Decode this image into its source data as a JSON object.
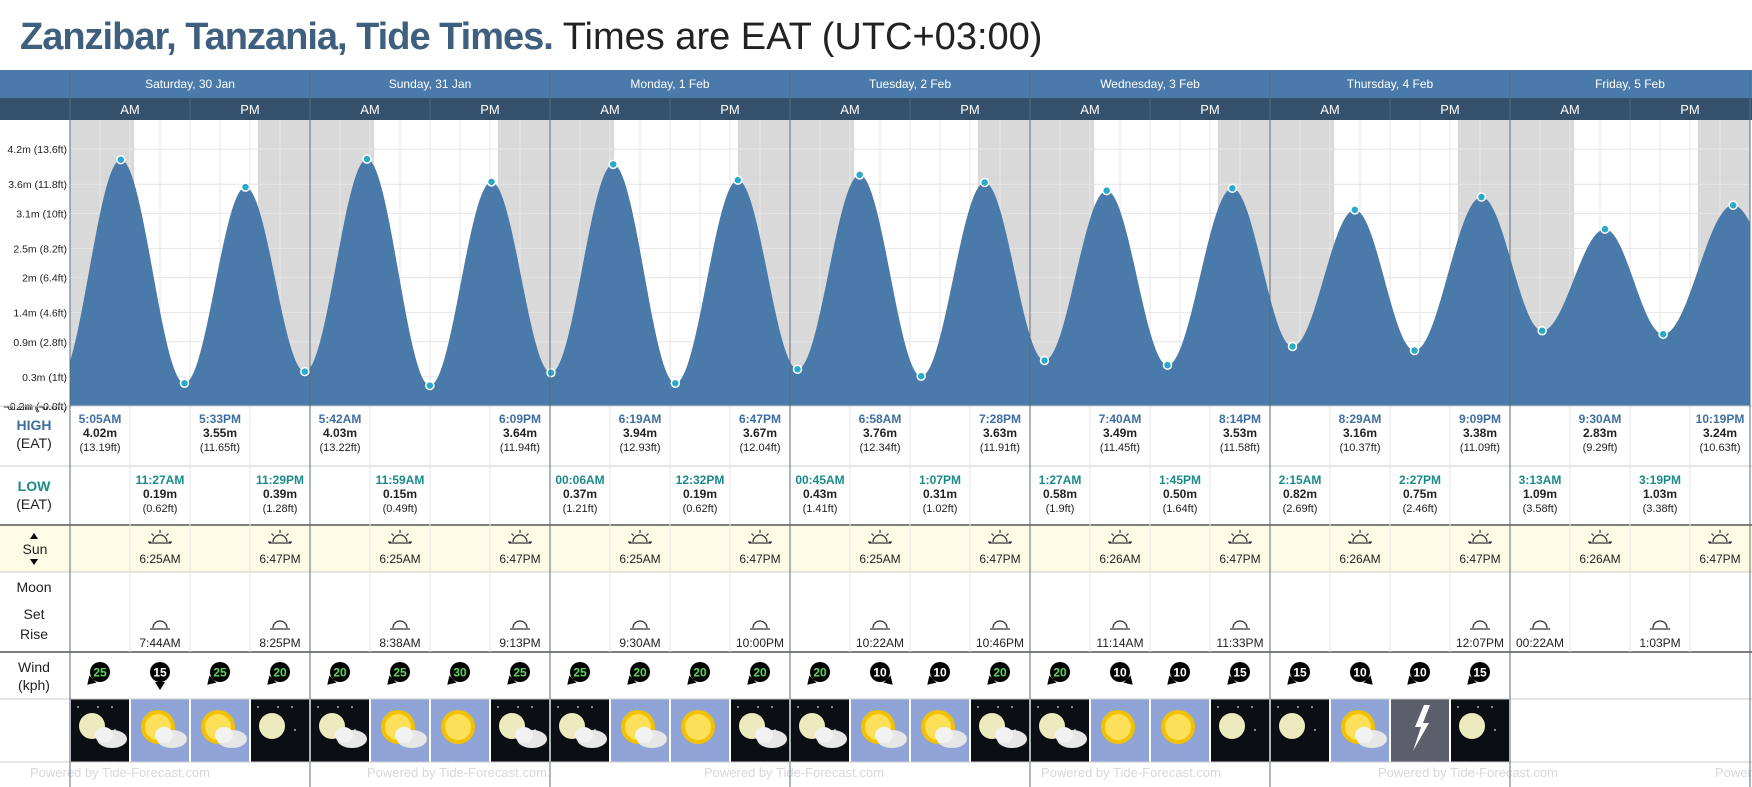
{
  "title": {
    "place": "Zanzibar, Tanzania, Tide Times.",
    "timezone": "Times are EAT (UTC+03:00)"
  },
  "days": [
    "Saturday, 30 Jan",
    "Sunday, 31 Jan",
    "Monday, 1 Feb",
    "Tuesday, 2 Feb",
    "Wednesday, 3 Feb",
    "Thursday, 4 Feb",
    "Friday, 5 Feb"
  ],
  "ampm": [
    "AM",
    "PM"
  ],
  "row_labels": {
    "high": "HIGH",
    "high_sub": "(EAT)",
    "low": "LOW",
    "low_sub": "(EAT)",
    "sun": "Sun",
    "moon": "Moon",
    "moon_set": "Set",
    "moon_rise": "Rise",
    "wind": "Wind",
    "wind_sub": "(kph)"
  },
  "colors": {
    "header": "#4a7aaa",
    "subheader": "#35506b",
    "tide_fill": "#4a7aaa",
    "night": "#d9d9d9",
    "high_label": "#3e6ea0",
    "low_label": "#1a8a8a",
    "sun_row": "#fcfbe6",
    "tide_dot": "#2aa9c8"
  },
  "chart_data": {
    "type": "area",
    "xlabel": "",
    "ylabel": "",
    "x_range": [
      "2021-01-30 00:00",
      "2021-02-05 24:00"
    ],
    "ylim": [
      -0.2,
      4.7
    ],
    "y_ticks": [
      {
        "value": 4.2,
        "label": "4.2m (13.6ft)"
      },
      {
        "value": 3.6,
        "label": "3.6m (11.8ft)"
      },
      {
        "value": 3.1,
        "label": "3.1m (10ft)"
      },
      {
        "value": 2.5,
        "label": "2.5m (8.2ft)"
      },
      {
        "value": 2.0,
        "label": "2m (6.4ft)"
      },
      {
        "value": 1.4,
        "label": "1.4m (4.6ft)"
      },
      {
        "value": 0.9,
        "label": "0.9m (2.8ft)"
      },
      {
        "value": 0.3,
        "label": "0.3m (1ft)"
      },
      {
        "value": -0.2,
        "label": "-0.2m (-0.8ft)"
      }
    ],
    "series": [
      {
        "values": [
          {
            "day": 0,
            "time": "05:05",
            "height": 4.02,
            "type": "high"
          },
          {
            "day": 0,
            "time": "11:27",
            "height": 0.19,
            "type": "low"
          },
          {
            "day": 0,
            "time": "17:33",
            "height": 3.55,
            "type": "high"
          },
          {
            "day": 0,
            "time": "23:29",
            "height": 0.39,
            "type": "low"
          },
          {
            "day": 1,
            "time": "05:42",
            "height": 4.03,
            "type": "high"
          },
          {
            "day": 1,
            "time": "11:59",
            "height": 0.15,
            "type": "low"
          },
          {
            "day": 1,
            "time": "18:09",
            "height": 3.64,
            "type": "high"
          },
          {
            "day": 2,
            "time": "00:06",
            "height": 0.37,
            "type": "low"
          },
          {
            "day": 2,
            "time": "06:19",
            "height": 3.94,
            "type": "high"
          },
          {
            "day": 2,
            "time": "12:32",
            "height": 0.19,
            "type": "low"
          },
          {
            "day": 2,
            "time": "18:47",
            "height": 3.67,
            "type": "high"
          },
          {
            "day": 3,
            "time": "00:45",
            "height": 0.43,
            "type": "low"
          },
          {
            "day": 3,
            "time": "06:58",
            "height": 3.76,
            "type": "high"
          },
          {
            "day": 3,
            "time": "13:07",
            "height": 0.31,
            "type": "low"
          },
          {
            "day": 3,
            "time": "19:28",
            "height": 3.63,
            "type": "high"
          },
          {
            "day": 4,
            "time": "01:27",
            "height": 0.58,
            "type": "low"
          },
          {
            "day": 4,
            "time": "07:40",
            "height": 3.49,
            "type": "high"
          },
          {
            "day": 4,
            "time": "13:45",
            "height": 0.5,
            "type": "low"
          },
          {
            "day": 4,
            "time": "20:14",
            "height": 3.53,
            "type": "high"
          },
          {
            "day": 5,
            "time": "02:15",
            "height": 0.82,
            "type": "low"
          },
          {
            "day": 5,
            "time": "08:29",
            "height": 3.16,
            "type": "high"
          },
          {
            "day": 5,
            "time": "14:27",
            "height": 0.75,
            "type": "low"
          },
          {
            "day": 5,
            "time": "21:09",
            "height": 3.38,
            "type": "high"
          },
          {
            "day": 6,
            "time": "03:13",
            "height": 1.09,
            "type": "low"
          },
          {
            "day": 6,
            "time": "09:30",
            "height": 2.83,
            "type": "high"
          },
          {
            "day": 6,
            "time": "15:19",
            "height": 1.03,
            "type": "low"
          },
          {
            "day": 6,
            "time": "22:19",
            "height": 3.24,
            "type": "high"
          }
        ]
      }
    ],
    "night_periods": [
      [
        "00:00",
        "06:25"
      ],
      [
        "18:47",
        "24:00"
      ]
    ]
  },
  "highs": [
    {
      "day": 0,
      "time": "05:05",
      "label": "5:05AM",
      "m": "4.02m",
      "ft": "(13.19ft)"
    },
    {
      "day": 0,
      "time": "17:33",
      "label": "5:33PM",
      "m": "3.55m",
      "ft": "(11.65ft)"
    },
    {
      "day": 1,
      "time": "05:42",
      "label": "5:42AM",
      "m": "4.03m",
      "ft": "(13.22ft)"
    },
    {
      "day": 1,
      "time": "18:09",
      "label": "6:09PM",
      "m": "3.64m",
      "ft": "(11.94ft)"
    },
    {
      "day": 2,
      "time": "06:19",
      "label": "6:19AM",
      "m": "3.94m",
      "ft": "(12.93ft)"
    },
    {
      "day": 2,
      "time": "18:47",
      "label": "6:47PM",
      "m": "3.67m",
      "ft": "(12.04ft)"
    },
    {
      "day": 3,
      "time": "06:58",
      "label": "6:58AM",
      "m": "3.76m",
      "ft": "(12.34ft)"
    },
    {
      "day": 3,
      "time": "19:28",
      "label": "7:28PM",
      "m": "3.63m",
      "ft": "(11.91ft)"
    },
    {
      "day": 4,
      "time": "07:40",
      "label": "7:40AM",
      "m": "3.49m",
      "ft": "(11.45ft)"
    },
    {
      "day": 4,
      "time": "20:14",
      "label": "8:14PM",
      "m": "3.53m",
      "ft": "(11.58ft)"
    },
    {
      "day": 5,
      "time": "08:29",
      "label": "8:29AM",
      "m": "3.16m",
      "ft": "(10.37ft)"
    },
    {
      "day": 5,
      "time": "21:09",
      "label": "9:09PM",
      "m": "3.38m",
      "ft": "(11.09ft)"
    },
    {
      "day": 6,
      "time": "09:30",
      "label": "9:30AM",
      "m": "2.83m",
      "ft": "(9.29ft)"
    },
    {
      "day": 6,
      "time": "22:19",
      "label": "10:19PM",
      "m": "3.24m",
      "ft": "(10.63ft)"
    }
  ],
  "lows": [
    {
      "day": 0,
      "time": "11:27",
      "label": "11:27AM",
      "m": "0.19m",
      "ft": "(0.62ft)"
    },
    {
      "day": 0,
      "time": "23:29",
      "label": "11:29PM",
      "m": "0.39m",
      "ft": "(1.28ft)"
    },
    {
      "day": 1,
      "time": "11:59",
      "label": "11:59AM",
      "m": "0.15m",
      "ft": "(0.49ft)"
    },
    {
      "day": 2,
      "time": "00:06",
      "label": "00:06AM",
      "m": "0.37m",
      "ft": "(1.21ft)"
    },
    {
      "day": 2,
      "time": "12:32",
      "label": "12:32PM",
      "m": "0.19m",
      "ft": "(0.62ft)"
    },
    {
      "day": 3,
      "time": "00:45",
      "label": "00:45AM",
      "m": "0.43m",
      "ft": "(1.41ft)"
    },
    {
      "day": 3,
      "time": "13:07",
      "label": "1:07PM",
      "m": "0.31m",
      "ft": "(1.02ft)"
    },
    {
      "day": 4,
      "time": "01:27",
      "label": "1:27AM",
      "m": "0.58m",
      "ft": "(1.9ft)"
    },
    {
      "day": 4,
      "time": "13:45",
      "label": "1:45PM",
      "m": "0.50m",
      "ft": "(1.64ft)"
    },
    {
      "day": 5,
      "time": "02:15",
      "label": "2:15AM",
      "m": "0.82m",
      "ft": "(2.69ft)"
    },
    {
      "day": 5,
      "time": "14:27",
      "label": "2:27PM",
      "m": "0.75m",
      "ft": "(2.46ft)"
    },
    {
      "day": 6,
      "time": "03:13",
      "label": "3:13AM",
      "m": "1.09m",
      "ft": "(3.58ft)"
    },
    {
      "day": 6,
      "time": "15:19",
      "label": "3:19PM",
      "m": "1.03m",
      "ft": "(3.38ft)"
    }
  ],
  "sun": [
    {
      "rise": "6:25AM",
      "set": "6:47PM"
    },
    {
      "rise": "6:25AM",
      "set": "6:47PM"
    },
    {
      "rise": "6:25AM",
      "set": "6:47PM"
    },
    {
      "rise": "6:25AM",
      "set": "6:47PM"
    },
    {
      "rise": "6:26AM",
      "set": "6:47PM"
    },
    {
      "rise": "6:26AM",
      "set": "6:47PM"
    },
    {
      "rise": "6:26AM",
      "set": "6:47PM"
    }
  ],
  "moon": [
    {
      "slot": 1,
      "time": "7:44AM"
    },
    {
      "slot": 3,
      "time": "8:25PM"
    },
    {
      "slot": 5,
      "time": "8:38AM"
    },
    {
      "slot": 7,
      "time": "9:13PM"
    },
    {
      "slot": 9,
      "time": "9:30AM"
    },
    {
      "slot": 11,
      "time": "10:00PM"
    },
    {
      "slot": 13,
      "time": "10:22AM"
    },
    {
      "slot": 15,
      "time": "10:46PM"
    },
    {
      "slot": 17,
      "time": "11:14AM"
    },
    {
      "slot": 19,
      "time": "11:33PM"
    },
    {
      "slot": 23,
      "time": "12:07PM"
    },
    {
      "slot": 24,
      "time": "00:22AM"
    },
    {
      "slot": 26,
      "time": "1:03PM"
    }
  ],
  "wind": [
    {
      "speed": "25",
      "dir": "sw",
      "color": "#1a8a1a"
    },
    {
      "speed": "15",
      "dir": "s",
      "color": "#000000"
    },
    {
      "speed": "25",
      "dir": "sw",
      "color": "#1a8a1a"
    },
    {
      "speed": "20",
      "dir": "sw",
      "color": "#1a8a1a"
    },
    {
      "speed": "20",
      "dir": "sw",
      "color": "#1a8a1a"
    },
    {
      "speed": "25",
      "dir": "sw",
      "color": "#1a8a1a"
    },
    {
      "speed": "30",
      "dir": "sw",
      "color": "#1a8a1a"
    },
    {
      "speed": "25",
      "dir": "sw",
      "color": "#1a8a1a"
    },
    {
      "speed": "25",
      "dir": "sw",
      "color": "#1a8a1a"
    },
    {
      "speed": "20",
      "dir": "sw",
      "color": "#1a8a1a"
    },
    {
      "speed": "20",
      "dir": "sw",
      "color": "#1a8a1a"
    },
    {
      "speed": "20",
      "dir": "sw",
      "color": "#1a8a1a"
    },
    {
      "speed": "20",
      "dir": "sw",
      "color": "#1a8a1a"
    },
    {
      "speed": "10",
      "dir": "se",
      "color": "#000000"
    },
    {
      "speed": "10",
      "dir": "sw",
      "color": "#000000"
    },
    {
      "speed": "20",
      "dir": "sw",
      "color": "#1a8a1a"
    },
    {
      "speed": "20",
      "dir": "sw",
      "color": "#1a8a1a"
    },
    {
      "speed": "10",
      "dir": "se",
      "color": "#000000"
    },
    {
      "speed": "10",
      "dir": "sw",
      "color": "#000000"
    },
    {
      "speed": "15",
      "dir": "sw",
      "color": "#000000"
    },
    {
      "speed": "15",
      "dir": "sw",
      "color": "#000000"
    },
    {
      "speed": "10",
      "dir": "se",
      "color": "#000000"
    },
    {
      "speed": "10",
      "dir": "sw",
      "color": "#000000"
    },
    {
      "speed": "15",
      "dir": "sw",
      "color": "#000000"
    }
  ],
  "weather": [
    "moon-partly-cloudy-icon",
    "sun-cloudy-icon",
    "sun-cloudy-icon",
    "moon-clear-icon",
    "moon-partly-cloudy-icon",
    "sun-cloudy-icon",
    "sun-clear-icon",
    "moon-cloudy-icon",
    "moon-cloudy-icon",
    "sun-cloudy-icon",
    "sun-clear-icon",
    "moon-cloudy-icon",
    "moon-cloudy-icon",
    "sun-cloudy-icon",
    "sun-cloudy-icon",
    "moon-cloudy-icon",
    "moon-cloudy-icon",
    "sun-clear-icon",
    "sun-clear-icon",
    "moon-clear-icon",
    "moon-clear-icon",
    "sun-cloudy-icon",
    "storm-icon",
    "moon-clear-icon"
  ],
  "watermark": "Powered by Tide-Forecast.com"
}
